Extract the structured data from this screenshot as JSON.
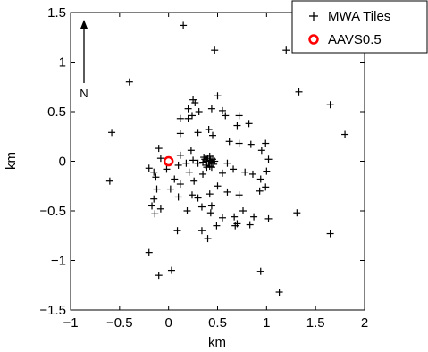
{
  "chart_data": {
    "type": "scatter",
    "xlabel": "km",
    "ylabel": "km",
    "xlim": [
      -1,
      2
    ],
    "ylim": [
      -1.5,
      1.5
    ],
    "x_ticks": [
      {
        "value": -1,
        "label": "−1"
      },
      {
        "value": -0.5,
        "label": "−0.5"
      },
      {
        "value": 0,
        "label": "0"
      },
      {
        "value": 0.5,
        "label": "0.5"
      },
      {
        "value": 1,
        "label": "1"
      },
      {
        "value": 1.5,
        "label": "1.5"
      },
      {
        "value": 2,
        "label": "2"
      }
    ],
    "y_ticks": [
      {
        "value": 1.5,
        "label": "1.5"
      },
      {
        "value": 1,
        "label": "1"
      },
      {
        "value": 0.5,
        "label": "0.5"
      },
      {
        "value": 0,
        "label": "0"
      },
      {
        "value": -0.5,
        "label": "−0.5"
      },
      {
        "value": -1,
        "label": "−1"
      },
      {
        "value": -1.5,
        "label": "−1.5"
      }
    ],
    "grid": false,
    "legend_position": "top-right",
    "north_arrow_label": "N",
    "series": [
      {
        "name": "MWA Tiles",
        "marker": "plus",
        "color": "#000000",
        "points": [
          [
            0.15,
            1.37
          ],
          [
            0.47,
            1.12
          ],
          [
            1.2,
            1.12
          ],
          [
            -0.4,
            0.8
          ],
          [
            1.33,
            0.7
          ],
          [
            -0.58,
            0.29
          ],
          [
            1.65,
            0.57
          ],
          [
            1.8,
            0.27
          ],
          [
            0.5,
            0.66
          ],
          [
            0.25,
            0.62
          ],
          [
            0.27,
            0.59
          ],
          [
            0.2,
            0.53
          ],
          [
            0.31,
            0.5
          ],
          [
            0.12,
            0.43
          ],
          [
            0.2,
            0.43
          ],
          [
            0.24,
            0.46
          ],
          [
            0.44,
            0.53
          ],
          [
            0.55,
            0.51
          ],
          [
            0.58,
            0.46
          ],
          [
            0.72,
            0.46
          ],
          [
            0.82,
            0.38
          ],
          [
            0.7,
            0.36
          ],
          [
            0.45,
            0.26
          ],
          [
            0.41,
            0.32
          ],
          [
            0.3,
            0.29
          ],
          [
            0.12,
            0.28
          ],
          [
            0.23,
            0.11
          ],
          [
            0.12,
            0.06
          ],
          [
            0.62,
            0.2
          ],
          [
            0.72,
            0.18
          ],
          [
            0.84,
            0.17
          ],
          [
            0.95,
            0.11
          ],
          [
            0.99,
            0.18
          ],
          [
            -0.1,
            0.13
          ],
          [
            -0.2,
            -0.07
          ],
          [
            -0.15,
            -0.11
          ],
          [
            -0.13,
            -0.16
          ],
          [
            -0.08,
            0.03
          ],
          [
            -0.02,
            -0.08
          ],
          [
            0.1,
            -0.04
          ],
          [
            0.18,
            -0.02
          ],
          [
            0.21,
            -0.11
          ],
          [
            0.06,
            -0.18
          ],
          [
            0.26,
            -0.2
          ],
          [
            0.35,
            -0.13
          ],
          [
            0.55,
            -0.12
          ],
          [
            0.66,
            -0.08
          ],
          [
            0.78,
            -0.11
          ],
          [
            0.86,
            -0.13
          ],
          [
            0.94,
            -0.18
          ],
          [
            1.0,
            -0.1
          ],
          [
            1.02,
            0.02
          ],
          [
            0.93,
            -0.3
          ],
          [
            0.99,
            -0.26
          ],
          [
            0.87,
            -0.56
          ],
          [
            0.76,
            -0.5
          ],
          [
            0.67,
            -0.56
          ],
          [
            0.55,
            -0.57
          ],
          [
            0.43,
            -0.52
          ],
          [
            0.34,
            -0.46
          ],
          [
            0.24,
            -0.34
          ],
          [
            0.12,
            -0.23
          ],
          [
            0.02,
            -0.28
          ],
          [
            -0.12,
            -0.28
          ],
          [
            -0.15,
            -0.38
          ],
          [
            -0.17,
            -0.45
          ],
          [
            -0.14,
            -0.53
          ],
          [
            -0.08,
            -0.48
          ],
          [
            0.1,
            -0.36
          ],
          [
            0.19,
            -0.5
          ],
          [
            0.3,
            -0.37
          ],
          [
            0.42,
            -0.33
          ],
          [
            0.6,
            -0.31
          ],
          [
            0.72,
            -0.34
          ],
          [
            0.5,
            -0.25
          ],
          [
            0.44,
            -0.45
          ],
          [
            0.68,
            -0.65
          ],
          [
            0.7,
            -0.63
          ],
          [
            0.83,
            -0.64
          ],
          [
            1.02,
            -0.58
          ],
          [
            1.31,
            -0.52
          ],
          [
            1.65,
            -0.73
          ],
          [
            -0.2,
            -0.92
          ],
          [
            -0.1,
            -1.15
          ],
          [
            0.03,
            -1.1
          ],
          [
            0.34,
            -0.7
          ],
          [
            0.4,
            -0.78
          ],
          [
            0.49,
            -0.65
          ],
          [
            0.09,
            -0.7
          ],
          [
            0.94,
            -1.11
          ],
          [
            1.13,
            -1.32
          ],
          [
            -0.6,
            -0.2
          ],
          [
            0.6,
            -0.02
          ],
          [
            0.25,
            0.01
          ],
          [
            0.3,
            -0.02
          ],
          [
            0.35,
            -0.01
          ],
          [
            0.37,
            0.02
          ],
          [
            0.38,
            -0.04
          ],
          [
            0.39,
            0.0
          ],
          [
            0.4,
            0.03
          ],
          [
            0.41,
            -0.02
          ],
          [
            0.42,
            -0.05
          ],
          [
            0.43,
            0.01
          ],
          [
            0.44,
            -0.01
          ],
          [
            0.45,
            0.02
          ],
          [
            0.46,
            -0.03
          ],
          [
            0.47,
            0.0
          ],
          [
            0.39,
            -0.06
          ],
          [
            0.44,
            -0.06
          ],
          [
            0.36,
            0.04
          ],
          [
            0.42,
            0.05
          ]
        ]
      },
      {
        "name": "AAVS0.5",
        "marker": "circle",
        "color": "#ff0000",
        "points": [
          [
            0.0,
            0.0
          ]
        ]
      }
    ]
  }
}
